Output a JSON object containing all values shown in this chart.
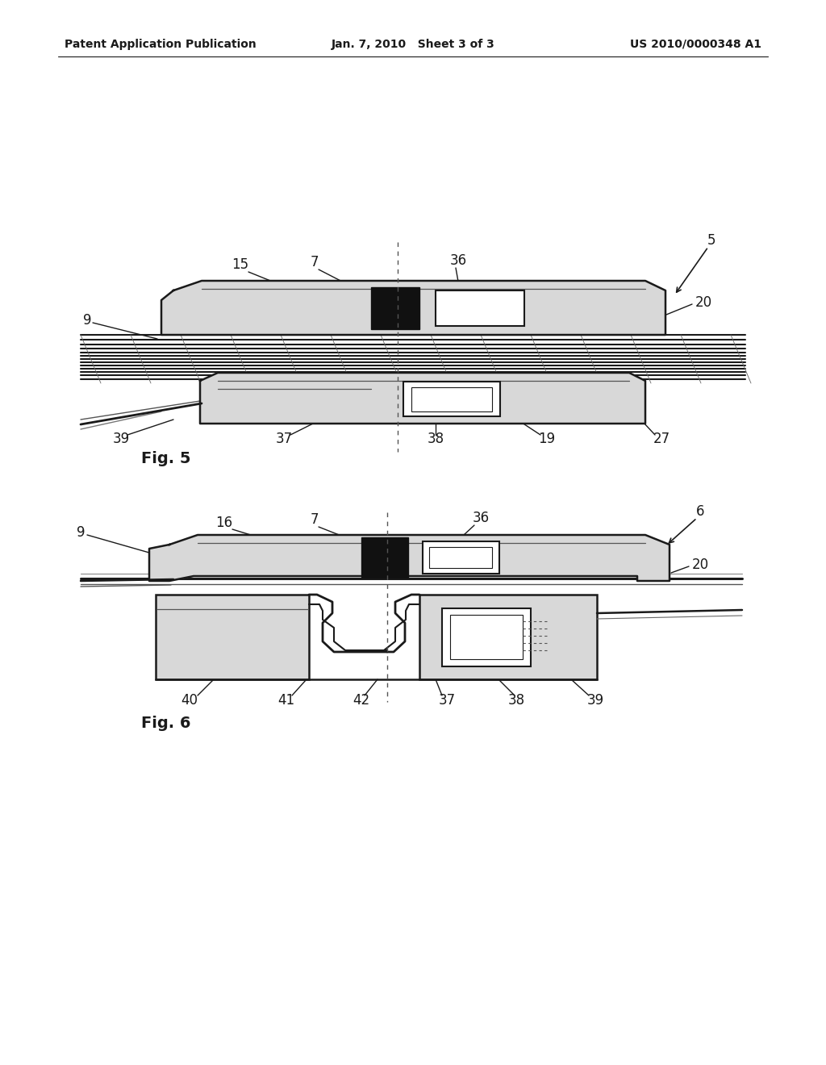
{
  "bg_color": "#ffffff",
  "header_left": "Patent Application Publication",
  "header_center": "Jan. 7, 2010   Sheet 3 of 3",
  "header_right": "US 2010/0000348 A1"
}
